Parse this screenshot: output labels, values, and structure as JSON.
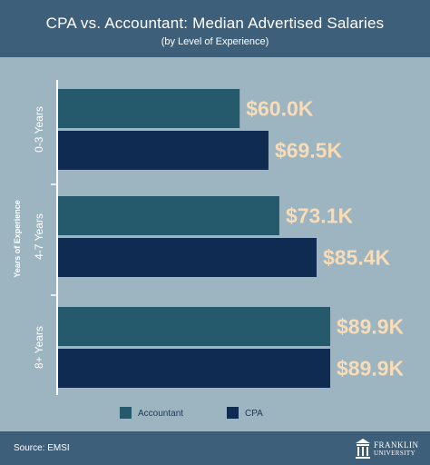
{
  "header": {
    "title": "CPA vs. Accountant: Median Advertised Salaries",
    "subtitle": "(by Level of Experience)"
  },
  "footer": {
    "source": "Source: EMSI",
    "logo_line1": "FRANKLIN",
    "logo_line2": "UNIVERSITY"
  },
  "colors": {
    "accountant": "#245a6c",
    "cpa": "#0f2b52",
    "value_label": "#f7dcb7",
    "plot_bg": "#9db4c1",
    "frame": "#3e5f7a"
  },
  "chart_data": {
    "type": "bar",
    "orientation": "horizontal",
    "title": "CPA vs. Accountant: Median Advertised Salaries",
    "subtitle": "(by Level of Experience)",
    "ylabel": "Years of Experience",
    "xlabel": "",
    "categories": [
      "0-3 Years",
      "4-7 Years",
      "8+ Years"
    ],
    "series": [
      {
        "name": "Accountant",
        "color": "#245a6c",
        "values": [
          60.0,
          73.1,
          89.9
        ],
        "labels": [
          "$60.0K",
          "$73.1K",
          "$89.9K"
        ]
      },
      {
        "name": "CPA",
        "color": "#0f2b52",
        "values": [
          69.5,
          85.4,
          89.9
        ],
        "labels": [
          "$69.5K",
          "$85.4K",
          "$89.9K"
        ]
      }
    ],
    "xlim": [
      0,
      100
    ],
    "grid": false,
    "legend": "bottom-center"
  }
}
